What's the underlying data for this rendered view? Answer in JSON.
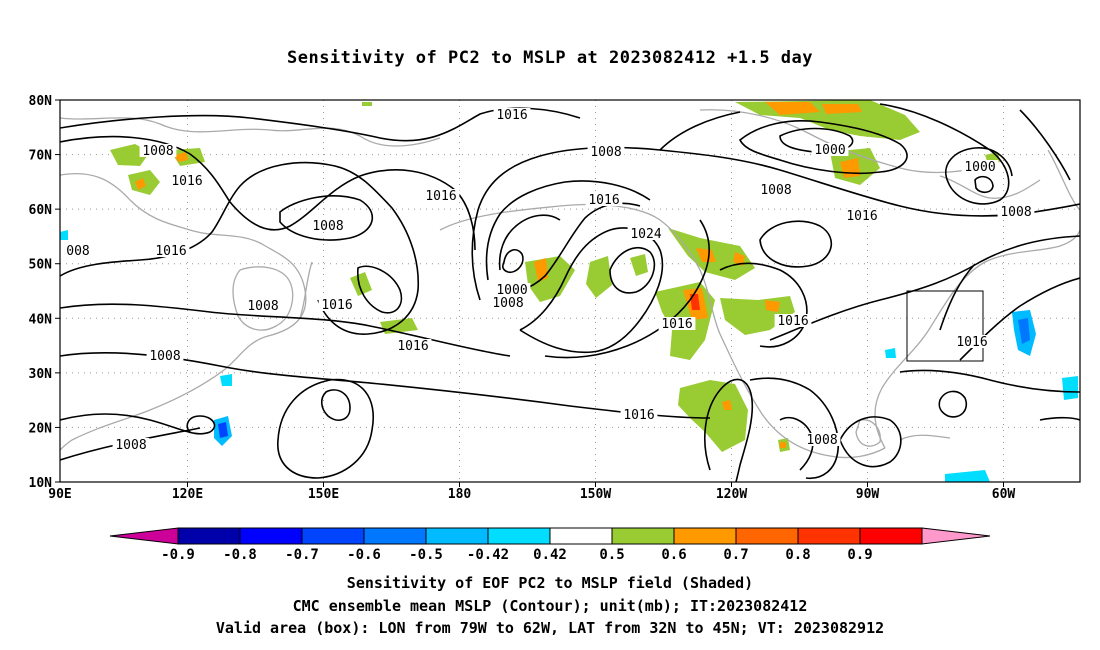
{
  "title": "Sensitivity of PC2 to MSLP at 2023082412 +1.5 day",
  "map": {
    "lat_labels": [
      "80N",
      "70N",
      "60N",
      "50N",
      "40N",
      "30N",
      "20N",
      "10N"
    ],
    "lon_labels": [
      "90E",
      "120E",
      "150E",
      "180",
      "150W",
      "120W",
      "90W",
      "60W"
    ],
    "contour_labels": [
      "1016",
      "1008",
      "1016",
      "1008",
      "1016",
      "008",
      "1016",
      "1008",
      "1016",
      "1016",
      "1008",
      "1008",
      "1000",
      "1008",
      "1016",
      "1024",
      "1016",
      "1016",
      "1008",
      "1000",
      "1008",
      "1016",
      "1000",
      "1008",
      "1016",
      "1016",
      "1008"
    ],
    "box_label": "Valid area",
    "colors": {
      "coast": "#aaaaaa",
      "contour": "#000000",
      "grid": "#999999",
      "pos_green": "#99cc33",
      "pos_orange": "#ff9900",
      "pos_red": "#ff3300",
      "neg_cyan": "#00ccff",
      "neg_blue": "#0066ff",
      "neg_dark": "#0000cc"
    }
  },
  "colorbar": {
    "labels": [
      "-0.9",
      "-0.8",
      "-0.7",
      "-0.6",
      "-0.5",
      "-0.42",
      "0.42",
      "0.5",
      "0.6",
      "0.7",
      "0.8",
      "0.9"
    ],
    "colors": [
      "#cc0099",
      "#0000aa",
      "#0000ff",
      "#0044ff",
      "#0077ff",
      "#00bbff",
      "#00ddff",
      "#ffffff",
      "#99cc33",
      "#ff9900",
      "#ff6600",
      "#ff3300",
      "#ff0000",
      "#ff99cc"
    ]
  },
  "caption": [
    "Sensitivity of EOF PC2 to MSLP field (Shaded)",
    "CMC ensemble mean MSLP (Contour); unit(mb); IT:2023082412",
    "Valid area (box): LON from 79W to 62W, LAT from 32N to 45N; VT: 2023082912"
  ]
}
